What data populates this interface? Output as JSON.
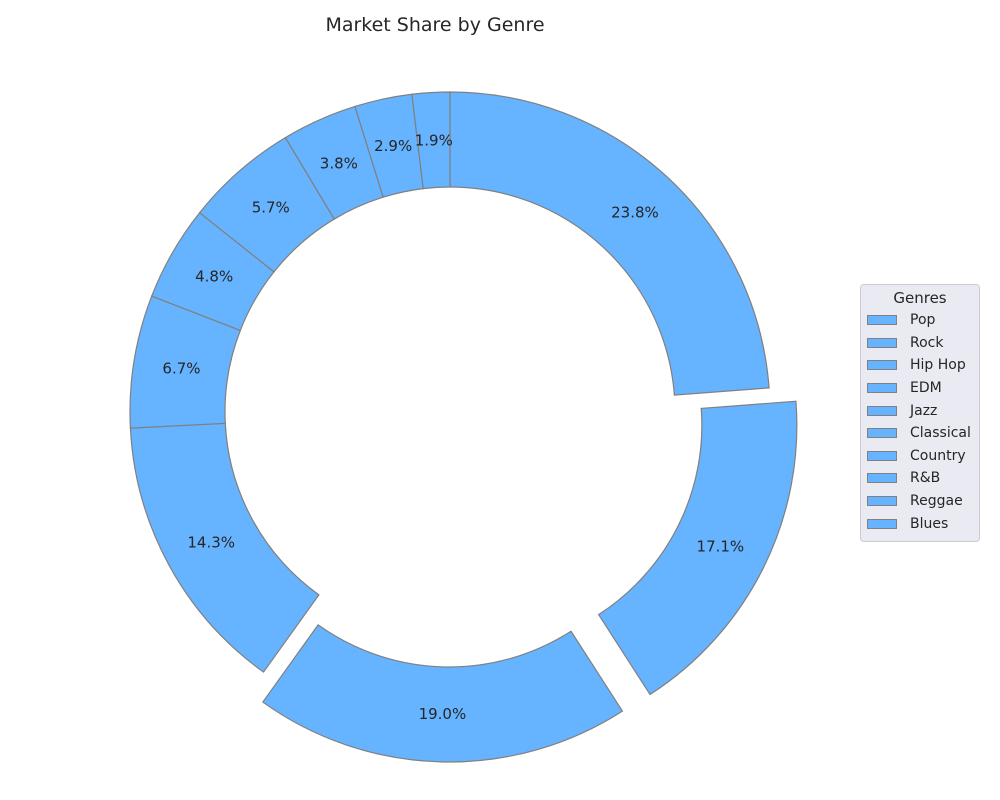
{
  "chart_data": {
    "type": "pie",
    "title": "Market Share by Genre",
    "donut": true,
    "start_angle_deg": 90,
    "direction": "clockwise",
    "categories": [
      "Pop",
      "Rock",
      "Hip Hop",
      "EDM",
      "Jazz",
      "Classical",
      "Country",
      "R&B",
      "Reggae",
      "Blues"
    ],
    "values": [
      23.8,
      17.1,
      19.0,
      14.3,
      6.7,
      4.8,
      5.7,
      3.8,
      2.9,
      1.9
    ],
    "labels": [
      "23.8%",
      "17.1%",
      "19.0%",
      "14.3%",
      "6.7%",
      "4.8%",
      "5.7%",
      "3.8%",
      "2.9%",
      "1.9%"
    ],
    "exploded": [
      "Rock",
      "Hip Hop"
    ],
    "slice_color": "#66b3ff",
    "edge_color": "#808080",
    "legend": {
      "title": "Genres",
      "placement": "center-right"
    }
  }
}
